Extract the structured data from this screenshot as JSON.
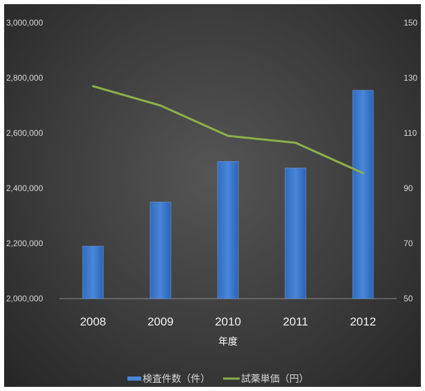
{
  "chart_data": {
    "type": "bar+line",
    "categories": [
      "2008",
      "2009",
      "2010",
      "2011",
      "2012"
    ],
    "series": [
      {
        "name": "検査件数（件）",
        "type": "bar",
        "axis": "left",
        "values": [
          2190000,
          2350000,
          2497000,
          2473000,
          2755000
        ],
        "color": "#4a86d8"
      },
      {
        "name": "試薬単価（円）",
        "type": "line",
        "axis": "right",
        "values": [
          127,
          120,
          109,
          106.5,
          95.5
        ],
        "color": "#8db04a"
      }
    ],
    "xlabel": "年度",
    "y_left": {
      "range": [
        2000000,
        3000000
      ],
      "ticks": [
        "2,000,000",
        "2,200,000",
        "2,400,000",
        "2,600,000",
        "2,800,000",
        "3,000,000"
      ]
    },
    "y_right": {
      "range": [
        50,
        150
      ],
      "ticks": [
        "50",
        "70",
        "90",
        "110",
        "130",
        "150"
      ]
    },
    "legend_position": "bottom",
    "grid": false,
    "background": "#3c3c3c"
  }
}
